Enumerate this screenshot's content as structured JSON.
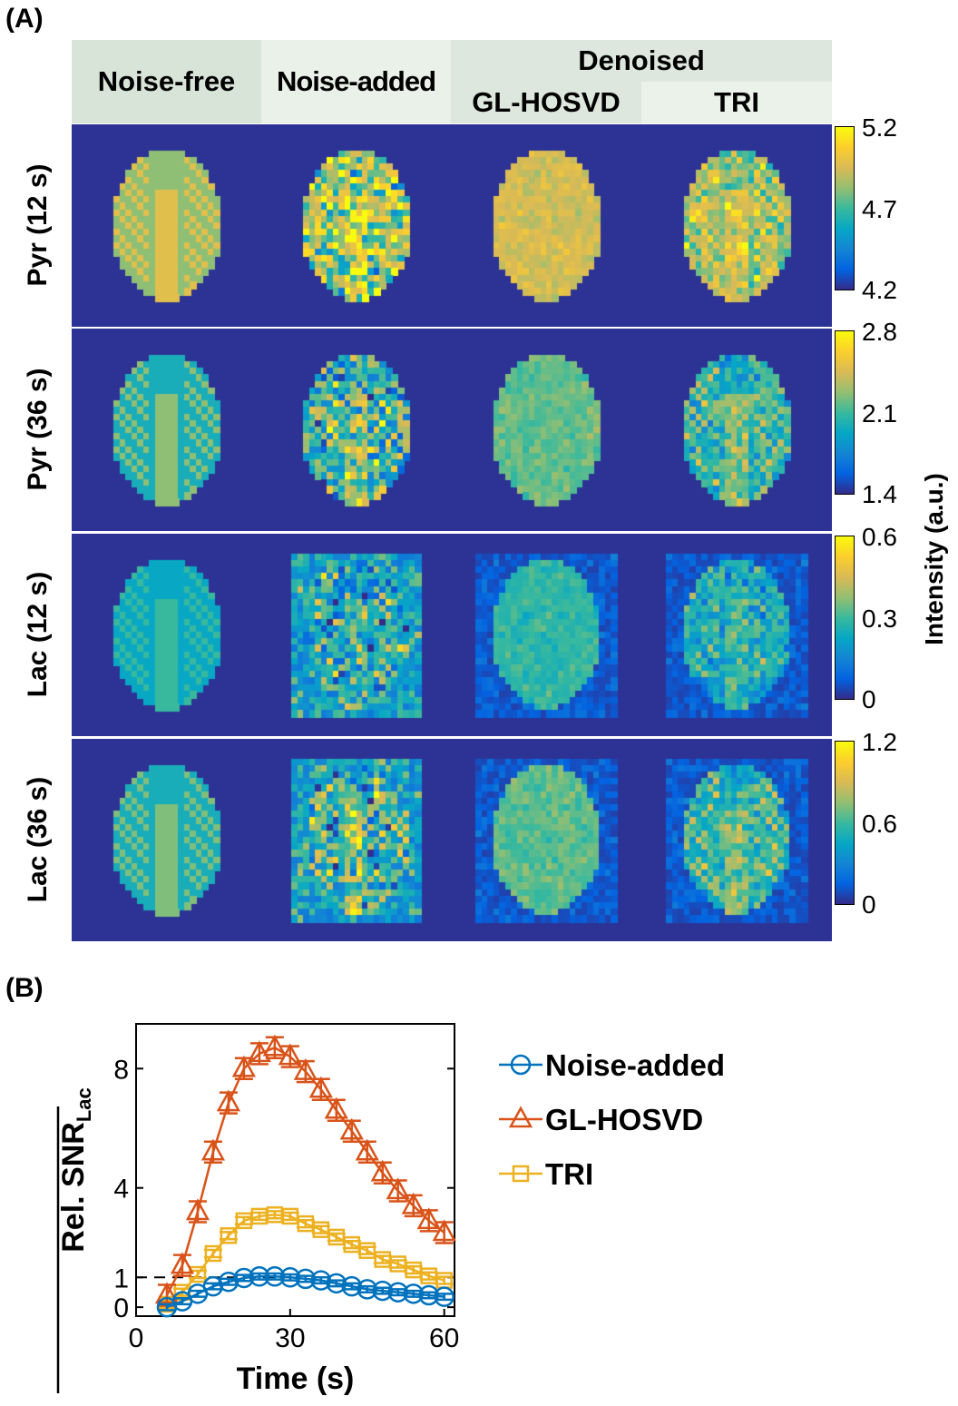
{
  "panel_a": {
    "label": "(A)",
    "headers": {
      "noise_free": "Noise-free",
      "noise_added": "Noise-added",
      "denoised": "Denoised",
      "gl_hosvd": "GL-HOSVD",
      "tri": "TRI"
    },
    "rows": [
      {
        "label": "Pyr (12 s)",
        "colorbar": [
          "5.2",
          "4.7",
          "4.2"
        ]
      },
      {
        "label": "Pyr (36 s)",
        "colorbar": [
          "2.8",
          "2.1",
          "1.4"
        ]
      },
      {
        "label": "Lac (12 s)",
        "colorbar": [
          "0.6",
          "0.3",
          "0"
        ]
      },
      {
        "label": "Lac (36 s)",
        "colorbar": [
          "1.2",
          "0.6",
          "0"
        ]
      }
    ],
    "colorbar_label": "Intensity (a.u.)",
    "colormap": "parula",
    "header_colors": {
      "noise_free": "#d8e4d8",
      "noise_added": "#e9f1e9",
      "denoised": "#dde7dd",
      "tri": "#eaf2ea"
    }
  },
  "chart_data": {
    "label": "(B)",
    "type": "line",
    "xlabel": "Time (s)",
    "ylabel": "Rel. SNR",
    "ylabel_sub": "Lac",
    "xlim": [
      0,
      62
    ],
    "ylim": [
      -0.3,
      9.5
    ],
    "xticks": [
      "0",
      "30",
      "60"
    ],
    "yticks": [
      "0",
      "1",
      "4",
      "8"
    ],
    "reference_line": {
      "y": 1,
      "style": "dashed"
    },
    "legend_position": "right-outside",
    "x": [
      6,
      9,
      12,
      15,
      18,
      21,
      24,
      27,
      30,
      33,
      36,
      39,
      42,
      45,
      48,
      51,
      54,
      57,
      60
    ],
    "series": [
      {
        "name": "Noise-added",
        "marker": "circle",
        "color": "#0072bd",
        "values": [
          0,
          0.2,
          0.45,
          0.7,
          0.85,
          0.98,
          1.03,
          1.03,
          1.0,
          0.95,
          0.9,
          0.8,
          0.7,
          0.6,
          0.55,
          0.5,
          0.45,
          0.4,
          0.35
        ],
        "error": 0.1
      },
      {
        "name": "GL-HOSVD",
        "marker": "triangle",
        "color": "#d95319",
        "values": [
          0.4,
          1.4,
          3.2,
          5.2,
          6.85,
          8.0,
          8.5,
          8.7,
          8.4,
          7.9,
          7.3,
          6.6,
          5.9,
          5.2,
          4.5,
          3.9,
          3.4,
          2.9,
          2.5
        ],
        "error": 0.35
      },
      {
        "name": "TRI",
        "marker": "square",
        "color": "#edb120",
        "values": [
          0.1,
          0.5,
          1.1,
          1.8,
          2.4,
          2.9,
          3.05,
          3.1,
          3.05,
          2.8,
          2.6,
          2.35,
          2.1,
          1.9,
          1.6,
          1.45,
          1.25,
          1.05,
          0.9
        ],
        "error": 0.12
      }
    ]
  }
}
